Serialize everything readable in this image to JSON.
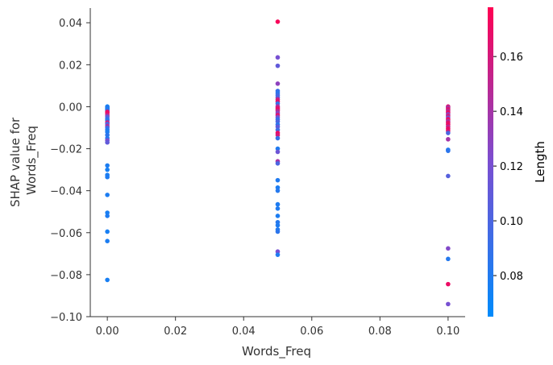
{
  "chart_data": {
    "type": "scatter",
    "xlabel": "Words_Freq",
    "ylabel_lines": [
      "SHAP value for",
      "Words_Freq"
    ],
    "xlim": [
      -0.005,
      0.105
    ],
    "ylim": [
      -0.1,
      0.047
    ],
    "x_ticks": [
      0.0,
      0.02,
      0.04,
      0.06,
      0.08,
      0.1
    ],
    "x_tick_labels": [
      "0.00",
      "0.02",
      "0.04",
      "0.06",
      "0.08",
      "0.10"
    ],
    "y_ticks": [
      0.04,
      0.02,
      0.0,
      -0.02,
      -0.04,
      -0.06,
      -0.08,
      -0.1
    ],
    "y_tick_labels": [
      "0.04",
      "0.02",
      "0.00",
      "−0.02",
      "−0.04",
      "−0.06",
      "−0.08",
      "−0.10"
    ],
    "colorbar": {
      "label": "Length",
      "range": [
        0.065,
        0.178
      ],
      "ticks": [
        0.08,
        0.1,
        0.12,
        0.14,
        0.16
      ],
      "tick_labels": [
        "0.08",
        "0.10",
        "0.12",
        "0.14",
        "0.16"
      ],
      "colors": [
        "#008bfb",
        "#7a4ed1",
        "#ff0052"
      ]
    },
    "points": [
      {
        "x": 0.0,
        "y": 0.0001,
        "c": 0.075
      },
      {
        "x": 0.0,
        "y": -0.0004,
        "c": 0.078
      },
      {
        "x": 0.0,
        "y": -0.0008,
        "c": 0.08
      },
      {
        "x": 0.0,
        "y": -0.0012,
        "c": 0.082
      },
      {
        "x": 0.0,
        "y": -0.0018,
        "c": 0.079
      },
      {
        "x": 0.0,
        "y": -0.0024,
        "c": 0.165
      },
      {
        "x": 0.0,
        "y": -0.003,
        "c": 0.17
      },
      {
        "x": 0.0,
        "y": -0.004,
        "c": 0.15
      },
      {
        "x": 0.0,
        "y": -0.0048,
        "c": 0.11
      },
      {
        "x": 0.0,
        "y": -0.0058,
        "c": 0.09
      },
      {
        "x": 0.0,
        "y": -0.0065,
        "c": 0.085
      },
      {
        "x": 0.0,
        "y": -0.0075,
        "c": 0.16
      },
      {
        "x": 0.0,
        "y": -0.0082,
        "c": 0.1
      },
      {
        "x": 0.0,
        "y": -0.0092,
        "c": 0.145
      },
      {
        "x": 0.0,
        "y": -0.01,
        "c": 0.095
      },
      {
        "x": 0.0,
        "y": -0.011,
        "c": 0.08
      },
      {
        "x": 0.0,
        "y": -0.012,
        "c": 0.078
      },
      {
        "x": 0.0,
        "y": -0.0135,
        "c": 0.085
      },
      {
        "x": 0.0,
        "y": -0.015,
        "c": 0.082
      },
      {
        "x": 0.0,
        "y": -0.016,
        "c": 0.12
      },
      {
        "x": 0.0,
        "y": -0.017,
        "c": 0.11
      },
      {
        "x": 0.0,
        "y": -0.028,
        "c": 0.078
      },
      {
        "x": 0.0,
        "y": -0.03,
        "c": 0.075
      },
      {
        "x": 0.0,
        "y": -0.0325,
        "c": 0.077
      },
      {
        "x": 0.0,
        "y": -0.0335,
        "c": 0.079
      },
      {
        "x": 0.0,
        "y": -0.042,
        "c": 0.078
      },
      {
        "x": 0.0,
        "y": -0.0505,
        "c": 0.076
      },
      {
        "x": 0.0,
        "y": -0.052,
        "c": 0.079
      },
      {
        "x": 0.0,
        "y": -0.0595,
        "c": 0.076
      },
      {
        "x": 0.0,
        "y": -0.064,
        "c": 0.078
      },
      {
        "x": 0.0,
        "y": -0.0825,
        "c": 0.076
      },
      {
        "x": 0.05,
        "y": 0.0405,
        "c": 0.175
      },
      {
        "x": 0.05,
        "y": 0.0235,
        "c": 0.12
      },
      {
        "x": 0.05,
        "y": 0.0195,
        "c": 0.11
      },
      {
        "x": 0.05,
        "y": 0.011,
        "c": 0.13
      },
      {
        "x": 0.05,
        "y": 0.0075,
        "c": 0.09
      },
      {
        "x": 0.05,
        "y": 0.0065,
        "c": 0.085
      },
      {
        "x": 0.05,
        "y": 0.0055,
        "c": 0.095
      },
      {
        "x": 0.05,
        "y": 0.0045,
        "c": 0.1
      },
      {
        "x": 0.05,
        "y": 0.0035,
        "c": 0.155
      },
      {
        "x": 0.05,
        "y": 0.0025,
        "c": 0.165
      },
      {
        "x": 0.05,
        "y": 0.0015,
        "c": 0.09
      },
      {
        "x": 0.05,
        "y": 0.0002,
        "c": 0.14
      },
      {
        "x": 0.05,
        "y": -0.0005,
        "c": 0.16
      },
      {
        "x": 0.05,
        "y": -0.0012,
        "c": 0.17
      },
      {
        "x": 0.05,
        "y": -0.002,
        "c": 0.15
      },
      {
        "x": 0.05,
        "y": -0.003,
        "c": 0.13
      },
      {
        "x": 0.05,
        "y": -0.004,
        "c": 0.165
      },
      {
        "x": 0.05,
        "y": -0.005,
        "c": 0.12
      },
      {
        "x": 0.05,
        "y": -0.006,
        "c": 0.09
      },
      {
        "x": 0.05,
        "y": -0.007,
        "c": 0.1
      },
      {
        "x": 0.05,
        "y": -0.0085,
        "c": 0.085
      },
      {
        "x": 0.05,
        "y": -0.0095,
        "c": 0.11
      },
      {
        "x": 0.05,
        "y": -0.011,
        "c": 0.095
      },
      {
        "x": 0.05,
        "y": -0.0125,
        "c": 0.17
      },
      {
        "x": 0.05,
        "y": -0.0135,
        "c": 0.16
      },
      {
        "x": 0.05,
        "y": -0.015,
        "c": 0.09
      },
      {
        "x": 0.05,
        "y": -0.02,
        "c": 0.08
      },
      {
        "x": 0.05,
        "y": -0.0215,
        "c": 0.115
      },
      {
        "x": 0.05,
        "y": -0.026,
        "c": 0.14
      },
      {
        "x": 0.05,
        "y": -0.027,
        "c": 0.1
      },
      {
        "x": 0.05,
        "y": -0.035,
        "c": 0.08
      },
      {
        "x": 0.05,
        "y": -0.0385,
        "c": 0.078
      },
      {
        "x": 0.05,
        "y": -0.04,
        "c": 0.082
      },
      {
        "x": 0.05,
        "y": -0.0465,
        "c": 0.079
      },
      {
        "x": 0.05,
        "y": -0.0485,
        "c": 0.08
      },
      {
        "x": 0.05,
        "y": -0.052,
        "c": 0.078
      },
      {
        "x": 0.05,
        "y": -0.055,
        "c": 0.082
      },
      {
        "x": 0.05,
        "y": -0.0565,
        "c": 0.079
      },
      {
        "x": 0.05,
        "y": -0.0585,
        "c": 0.08
      },
      {
        "x": 0.05,
        "y": -0.0595,
        "c": 0.085
      },
      {
        "x": 0.05,
        "y": -0.069,
        "c": 0.12
      },
      {
        "x": 0.05,
        "y": -0.0705,
        "c": 0.08
      },
      {
        "x": 0.1,
        "y": 0.0001,
        "c": 0.16
      },
      {
        "x": 0.1,
        "y": -0.0005,
        "c": 0.14
      },
      {
        "x": 0.1,
        "y": -0.0012,
        "c": 0.165
      },
      {
        "x": 0.1,
        "y": -0.002,
        "c": 0.15
      },
      {
        "x": 0.1,
        "y": -0.0028,
        "c": 0.17
      },
      {
        "x": 0.1,
        "y": -0.0036,
        "c": 0.13
      },
      {
        "x": 0.1,
        "y": -0.0044,
        "c": 0.16
      },
      {
        "x": 0.1,
        "y": -0.0052,
        "c": 0.12
      },
      {
        "x": 0.1,
        "y": -0.006,
        "c": 0.175
      },
      {
        "x": 0.1,
        "y": -0.0068,
        "c": 0.14
      },
      {
        "x": 0.1,
        "y": -0.0076,
        "c": 0.165
      },
      {
        "x": 0.1,
        "y": -0.0085,
        "c": 0.17
      },
      {
        "x": 0.1,
        "y": -0.0095,
        "c": 0.15
      },
      {
        "x": 0.1,
        "y": -0.0105,
        "c": 0.17
      },
      {
        "x": 0.1,
        "y": -0.0115,
        "c": 0.165
      },
      {
        "x": 0.1,
        "y": -0.0125,
        "c": 0.1
      },
      {
        "x": 0.1,
        "y": -0.0155,
        "c": 0.14
      },
      {
        "x": 0.1,
        "y": -0.0205,
        "c": 0.08
      },
      {
        "x": 0.1,
        "y": -0.021,
        "c": 0.085
      },
      {
        "x": 0.1,
        "y": -0.033,
        "c": 0.105
      },
      {
        "x": 0.1,
        "y": -0.0675,
        "c": 0.125
      },
      {
        "x": 0.1,
        "y": -0.0725,
        "c": 0.082
      },
      {
        "x": 0.1,
        "y": -0.0845,
        "c": 0.17
      },
      {
        "x": 0.1,
        "y": -0.094,
        "c": 0.12
      }
    ]
  }
}
